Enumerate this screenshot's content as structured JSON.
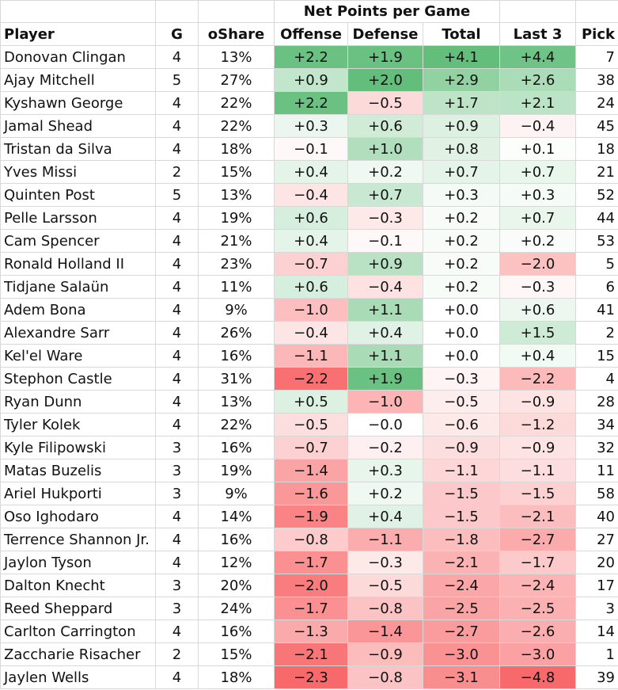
{
  "chart_data": {
    "type": "table",
    "title": "Net Points per Game",
    "columns": [
      "Player",
      "G",
      "oShare",
      "Offense",
      "Defense",
      "Total",
      "Last 3",
      "Pick"
    ],
    "rows": [
      {
        "player": "Donovan Clingan",
        "g": 4,
        "oshare": "13%",
        "off": "+2.2",
        "def": "+1.9",
        "tot": "+4.1",
        "last3": "+4.4",
        "pick": 7
      },
      {
        "player": "Ajay Mitchell",
        "g": 5,
        "oshare": "27%",
        "off": "+0.9",
        "def": "+2.0",
        "tot": "+2.9",
        "last3": "+2.6",
        "pick": 38
      },
      {
        "player": "Kyshawn George",
        "g": 4,
        "oshare": "22%",
        "off": "+2.2",
        "def": "−0.5",
        "tot": "+1.7",
        "last3": "+2.1",
        "pick": 24
      },
      {
        "player": "Jamal Shead",
        "g": 4,
        "oshare": "22%",
        "off": "+0.3",
        "def": "+0.6",
        "tot": "+0.9",
        "last3": "−0.4",
        "pick": 45
      },
      {
        "player": "Tristan da Silva",
        "g": 4,
        "oshare": "18%",
        "off": "−0.1",
        "def": "+1.0",
        "tot": "+0.8",
        "last3": "+0.1",
        "pick": 18
      },
      {
        "player": "Yves Missi",
        "g": 2,
        "oshare": "15%",
        "off": "+0.4",
        "def": "+0.2",
        "tot": "+0.7",
        "last3": "+0.7",
        "pick": 21
      },
      {
        "player": "Quinten Post",
        "g": 5,
        "oshare": "13%",
        "off": "−0.4",
        "def": "+0.7",
        "tot": "+0.3",
        "last3": "+0.3",
        "pick": 52
      },
      {
        "player": "Pelle Larsson",
        "g": 4,
        "oshare": "19%",
        "off": "+0.6",
        "def": "−0.3",
        "tot": "+0.2",
        "last3": "+0.7",
        "pick": 44
      },
      {
        "player": "Cam Spencer",
        "g": 4,
        "oshare": "21%",
        "off": "+0.4",
        "def": "−0.1",
        "tot": "+0.2",
        "last3": "+0.2",
        "pick": 53
      },
      {
        "player": "Ronald Holland II",
        "g": 4,
        "oshare": "23%",
        "off": "−0.7",
        "def": "+0.9",
        "tot": "+0.2",
        "last3": "−2.0",
        "pick": 5
      },
      {
        "player": "Tidjane Salaün",
        "g": 4,
        "oshare": "11%",
        "off": "+0.6",
        "def": "−0.4",
        "tot": "+0.2",
        "last3": "−0.3",
        "pick": 6
      },
      {
        "player": "Adem Bona",
        "g": 4,
        "oshare": "9%",
        "off": "−1.0",
        "def": "+1.1",
        "tot": "+0.0",
        "last3": "+0.6",
        "pick": 41
      },
      {
        "player": "Alexandre Sarr",
        "g": 4,
        "oshare": "26%",
        "off": "−0.4",
        "def": "+0.4",
        "tot": "+0.0",
        "last3": "+1.5",
        "pick": 2
      },
      {
        "player": "Kel'el Ware",
        "g": 4,
        "oshare": "16%",
        "off": "−1.1",
        "def": "+1.1",
        "tot": "+0.0",
        "last3": "+0.4",
        "pick": 15
      },
      {
        "player": "Stephon Castle",
        "g": 4,
        "oshare": "31%",
        "off": "−2.2",
        "def": "+1.9",
        "tot": "−0.3",
        "last3": "−2.2",
        "pick": 4
      },
      {
        "player": "Ryan Dunn",
        "g": 4,
        "oshare": "13%",
        "off": "+0.5",
        "def": "−1.0",
        "tot": "−0.5",
        "last3": "−0.9",
        "pick": 28
      },
      {
        "player": "Tyler Kolek",
        "g": 4,
        "oshare": "22%",
        "off": "−0.5",
        "def": "−0.0",
        "tot": "−0.6",
        "last3": "−1.2",
        "pick": 34
      },
      {
        "player": "Kyle Filipowski",
        "g": 3,
        "oshare": "16%",
        "off": "−0.7",
        "def": "−0.2",
        "tot": "−0.9",
        "last3": "−0.9",
        "pick": 32
      },
      {
        "player": "Matas Buzelis",
        "g": 3,
        "oshare": "19%",
        "off": "−1.4",
        "def": "+0.3",
        "tot": "−1.1",
        "last3": "−1.1",
        "pick": 11
      },
      {
        "player": "Ariel Hukporti",
        "g": 3,
        "oshare": "9%",
        "off": "−1.6",
        "def": "+0.2",
        "tot": "−1.5",
        "last3": "−1.5",
        "pick": 58
      },
      {
        "player": "Oso Ighodaro",
        "g": 4,
        "oshare": "14%",
        "off": "−1.9",
        "def": "+0.4",
        "tot": "−1.5",
        "last3": "−2.1",
        "pick": 40
      },
      {
        "player": "Terrence Shannon Jr.",
        "g": 4,
        "oshare": "16%",
        "off": "−0.8",
        "def": "−1.1",
        "tot": "−1.8",
        "last3": "−2.7",
        "pick": 27
      },
      {
        "player": "Jaylon Tyson",
        "g": 4,
        "oshare": "12%",
        "off": "−1.7",
        "def": "−0.3",
        "tot": "−2.1",
        "last3": "−1.7",
        "pick": 20
      },
      {
        "player": "Dalton Knecht",
        "g": 3,
        "oshare": "20%",
        "off": "−2.0",
        "def": "−0.5",
        "tot": "−2.4",
        "last3": "−2.4",
        "pick": 17
      },
      {
        "player": "Reed Sheppard",
        "g": 3,
        "oshare": "24%",
        "off": "−1.7",
        "def": "−0.8",
        "tot": "−2.5",
        "last3": "−2.5",
        "pick": 3
      },
      {
        "player": "Carlton Carrington",
        "g": 4,
        "oshare": "16%",
        "off": "−1.3",
        "def": "−1.4",
        "tot": "−2.7",
        "last3": "−2.6",
        "pick": 14
      },
      {
        "player": "Zaccharie Risacher",
        "g": 2,
        "oshare": "15%",
        "off": "−2.1",
        "def": "−0.9",
        "tot": "−3.0",
        "last3": "−3.0",
        "pick": 1
      },
      {
        "player": "Jaylen Wells",
        "g": 4,
        "oshare": "18%",
        "off": "−2.3",
        "def": "−0.8",
        "tot": "−3.1",
        "last3": "−4.8",
        "pick": 39
      }
    ],
    "color_scale": {
      "positive": "#63be7b",
      "negative": "#f8696b",
      "neutral": "#ffffff"
    },
    "scale_max": {
      "off": 2.3,
      "def": 2.0,
      "tot": 4.1,
      "last3": 4.8
    }
  }
}
